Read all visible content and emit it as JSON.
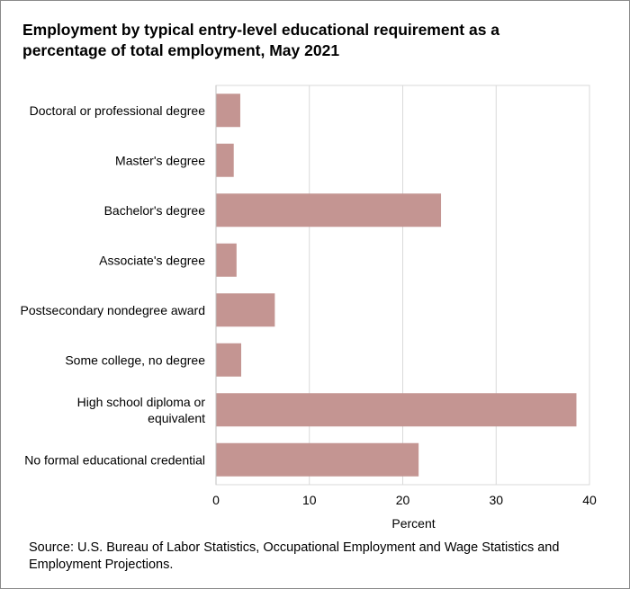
{
  "chart_data": {
    "type": "bar",
    "orientation": "horizontal",
    "title_lines": [
      "Employment  by typical entry-level educational requirement as a",
      "percentage of total employment,  May 2021"
    ],
    "categories": [
      [
        "Doctoral or professional degree"
      ],
      [
        "Master's degree"
      ],
      [
        "Bachelor's degree"
      ],
      [
        "Associate's degree"
      ],
      [
        "Postsecondary nondegree award"
      ],
      [
        "Some college, no degree"
      ],
      [
        "High school diploma or",
        "equivalent"
      ],
      [
        "No formal educational credential"
      ]
    ],
    "values": [
      2.6,
      1.9,
      24.1,
      2.2,
      6.3,
      2.7,
      38.6,
      21.7
    ],
    "xlabel": "Percent",
    "xlim": [
      0,
      40
    ],
    "xticks": [
      0,
      10,
      20,
      30,
      40
    ],
    "grid": true,
    "legend": "none",
    "bar_color": "#c49592",
    "grid_color": "#d9d9d9",
    "source_lines": [
      "Source: U.S. Bureau of Labor Statistics, Occupational Employment  and Wage Statistics and",
      "Employment  Projections."
    ]
  }
}
